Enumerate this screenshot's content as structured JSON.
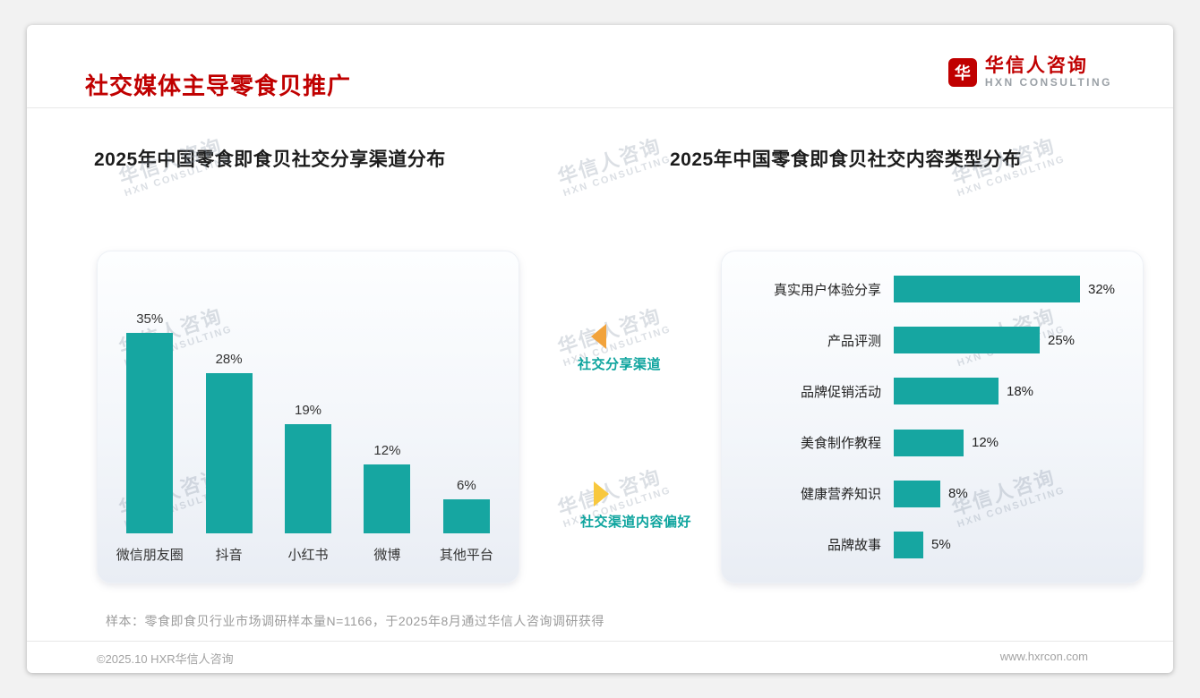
{
  "page": {
    "title": "社交媒体主导零食贝推广",
    "brand": {
      "cn": "华信人咨询",
      "en": "HXN CONSULTING",
      "mark": "华"
    },
    "watermark": {
      "cn": "华信人咨询",
      "en": "HXN CONSULTING"
    },
    "footnote": "样本：零食即食贝行业市场调研样本量N=1166，于2025年8月通过华信人咨询调研获得",
    "footer": {
      "copyright": "©2025.10 HXR华信人咨询",
      "website": "www.hxrcon.com"
    }
  },
  "middle": {
    "top_label": "社交分享渠道",
    "bottom_label": "社交渠道内容偏好"
  },
  "colors": {
    "accent_red": "#C00000",
    "bar_teal": "#16A6A1",
    "arrow_top": "#F2A33C",
    "arrow_bottom": "#F8C83E",
    "mid_label_teal": "#0EA49E"
  },
  "chart_data": [
    {
      "type": "bar",
      "title": "2025年中国零食即食贝社交分享渠道分布",
      "categories": [
        "微信朋友圈",
        "抖音",
        "小红书",
        "微博",
        "其他平台"
      ],
      "values": [
        35,
        28,
        19,
        12,
        6
      ],
      "unit": "%",
      "ylim": [
        0,
        40
      ],
      "grid": false,
      "legend": "none"
    },
    {
      "type": "bar-horizontal",
      "title": "2025年中国零食即食贝社交内容类型分布",
      "categories": [
        "真实用户体验分享",
        "产品评测",
        "品牌促销活动",
        "美食制作教程",
        "健康营养知识",
        "品牌故事"
      ],
      "values": [
        32,
        25,
        18,
        12,
        8,
        5
      ],
      "unit": "%",
      "xlim": [
        0,
        35
      ],
      "grid": false,
      "legend": "none"
    }
  ]
}
